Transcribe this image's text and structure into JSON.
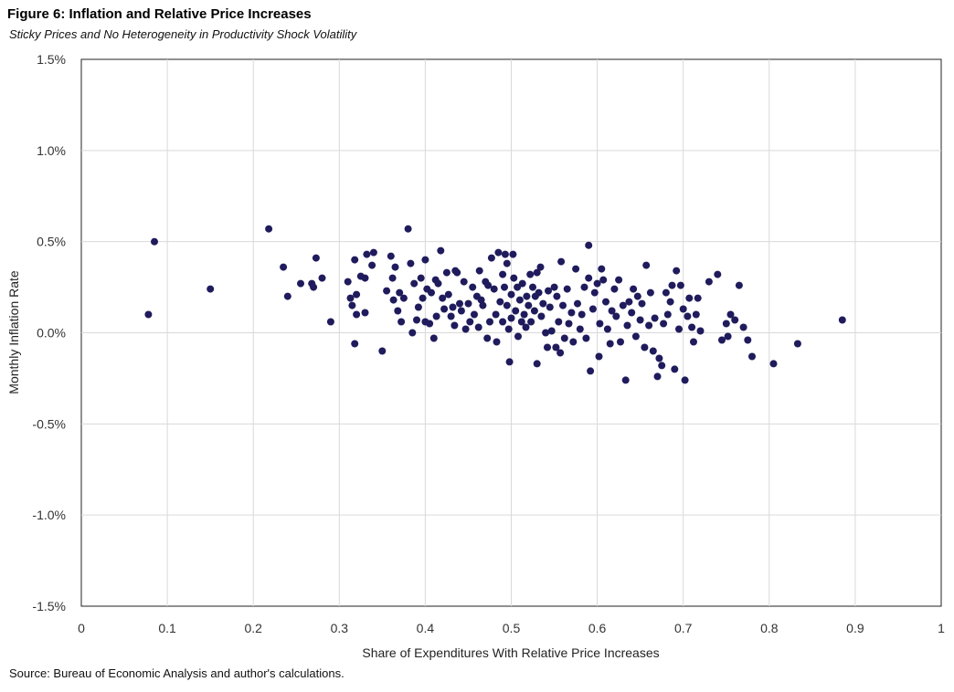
{
  "figure": {
    "title": "Figure 6: Inflation and Relative Price Increases",
    "subtitle": "Sticky Prices and No Heterogeneity in Productivity Shock Volatility",
    "source": "Source: Bureau of Economic Analysis and author's calculations."
  },
  "chart_data": {
    "type": "scatter",
    "xlabel": "Share of Expenditures With Relative Price Increases",
    "ylabel": "Monthly Inflation Rate",
    "xlim": [
      0,
      1
    ],
    "ylim": [
      -1.5,
      1.5
    ],
    "x_ticks": [
      0,
      0.1,
      0.2,
      0.3,
      0.4,
      0.5,
      0.6,
      0.7,
      0.8,
      0.9,
      1
    ],
    "x_tick_labels": [
      "0",
      "0.1",
      "0.2",
      "0.3",
      "0.4",
      "0.5",
      "0.6",
      "0.7",
      "0.8",
      "0.9",
      "1"
    ],
    "y_ticks": [
      -1.5,
      -1.0,
      -0.5,
      0.0,
      0.5,
      1.0,
      1.5
    ],
    "y_tick_labels": [
      "-1.5%",
      "-1.0%",
      "-0.5%",
      "0.0%",
      "0.5%",
      "1.0%",
      "1.5%"
    ],
    "grid": true,
    "marker_color": "#1f1b5c",
    "series": [
      {
        "points": [
          [
            0.078,
            0.1
          ],
          [
            0.085,
            0.5
          ],
          [
            0.15,
            0.24
          ],
          [
            0.218,
            0.57
          ],
          [
            0.235,
            0.36
          ],
          [
            0.24,
            0.2
          ],
          [
            0.255,
            0.27
          ],
          [
            0.268,
            0.27
          ],
          [
            0.27,
            0.25
          ],
          [
            0.273,
            0.41
          ],
          [
            0.28,
            0.3
          ],
          [
            0.29,
            0.06
          ],
          [
            0.31,
            0.28
          ],
          [
            0.313,
            0.19
          ],
          [
            0.315,
            0.15
          ],
          [
            0.318,
            0.4
          ],
          [
            0.318,
            -0.06
          ],
          [
            0.32,
            0.1
          ],
          [
            0.32,
            0.21
          ],
          [
            0.325,
            0.31
          ],
          [
            0.33,
            0.3
          ],
          [
            0.33,
            0.11
          ],
          [
            0.332,
            0.43
          ],
          [
            0.338,
            0.37
          ],
          [
            0.34,
            0.44
          ],
          [
            0.35,
            -0.1
          ],
          [
            0.355,
            0.23
          ],
          [
            0.36,
            0.42
          ],
          [
            0.362,
            0.3
          ],
          [
            0.363,
            0.18
          ],
          [
            0.365,
            0.36
          ],
          [
            0.368,
            0.12
          ],
          [
            0.37,
            0.22
          ],
          [
            0.372,
            0.06
          ],
          [
            0.375,
            0.19
          ],
          [
            0.38,
            0.57
          ],
          [
            0.383,
            0.38
          ],
          [
            0.385,
            0.0
          ],
          [
            0.387,
            0.27
          ],
          [
            0.39,
            0.07
          ],
          [
            0.392,
            0.14
          ],
          [
            0.395,
            0.3
          ],
          [
            0.397,
            0.19
          ],
          [
            0.4,
            0.06
          ],
          [
            0.4,
            0.4
          ],
          [
            0.402,
            0.24
          ],
          [
            0.405,
            0.05
          ],
          [
            0.407,
            0.22
          ],
          [
            0.41,
            -0.03
          ],
          [
            0.412,
            0.29
          ],
          [
            0.413,
            0.09
          ],
          [
            0.415,
            0.27
          ],
          [
            0.418,
            0.45
          ],
          [
            0.42,
            0.19
          ],
          [
            0.422,
            0.13
          ],
          [
            0.425,
            0.33
          ],
          [
            0.427,
            0.21
          ],
          [
            0.43,
            0.09
          ],
          [
            0.432,
            0.14
          ],
          [
            0.434,
            0.04
          ],
          [
            0.435,
            0.34
          ],
          [
            0.437,
            0.33
          ],
          [
            0.44,
            0.16
          ],
          [
            0.442,
            0.12
          ],
          [
            0.445,
            0.28
          ],
          [
            0.447,
            0.02
          ],
          [
            0.45,
            0.16
          ],
          [
            0.452,
            0.06
          ],
          [
            0.455,
            0.25
          ],
          [
            0.457,
            0.1
          ],
          [
            0.46,
            0.2
          ],
          [
            0.462,
            0.03
          ],
          [
            0.463,
            0.34
          ],
          [
            0.465,
            0.18
          ],
          [
            0.467,
            0.15
          ],
          [
            0.47,
            0.28
          ],
          [
            0.472,
            -0.03
          ],
          [
            0.473,
            0.26
          ],
          [
            0.475,
            0.06
          ],
          [
            0.477,
            0.41
          ],
          [
            0.48,
            0.24
          ],
          [
            0.482,
            0.1
          ],
          [
            0.483,
            -0.05
          ],
          [
            0.485,
            0.44
          ],
          [
            0.487,
            0.17
          ],
          [
            0.49,
            0.32
          ],
          [
            0.49,
            0.06
          ],
          [
            0.492,
            0.25
          ],
          [
            0.493,
            0.43
          ],
          [
            0.495,
            0.38
          ],
          [
            0.495,
            0.15
          ],
          [
            0.497,
            0.02
          ],
          [
            0.498,
            -0.16
          ],
          [
            0.5,
            0.21
          ],
          [
            0.5,
            0.08
          ],
          [
            0.502,
            0.43
          ],
          [
            0.503,
            0.3
          ],
          [
            0.505,
            0.12
          ],
          [
            0.507,
            0.25
          ],
          [
            0.508,
            -0.02
          ],
          [
            0.51,
            0.18
          ],
          [
            0.512,
            0.06
          ],
          [
            0.513,
            0.27
          ],
          [
            0.515,
            0.1
          ],
          [
            0.517,
            0.03
          ],
          [
            0.518,
            0.2
          ],
          [
            0.52,
            0.15
          ],
          [
            0.522,
            0.32
          ],
          [
            0.523,
            0.06
          ],
          [
            0.525,
            0.25
          ],
          [
            0.527,
            0.12
          ],
          [
            0.528,
            0.2
          ],
          [
            0.53,
            0.33
          ],
          [
            0.53,
            -0.17
          ],
          [
            0.532,
            0.22
          ],
          [
            0.534,
            0.36
          ],
          [
            0.535,
            0.09
          ],
          [
            0.537,
            0.16
          ],
          [
            0.54,
            0.0
          ],
          [
            0.542,
            -0.08
          ],
          [
            0.543,
            0.23
          ],
          [
            0.545,
            0.14
          ],
          [
            0.547,
            0.01
          ],
          [
            0.55,
            0.25
          ],
          [
            0.552,
            -0.08
          ],
          [
            0.553,
            0.2
          ],
          [
            0.555,
            0.06
          ],
          [
            0.557,
            -0.11
          ],
          [
            0.558,
            0.39
          ],
          [
            0.56,
            0.15
          ],
          [
            0.562,
            -0.03
          ],
          [
            0.565,
            0.24
          ],
          [
            0.567,
            0.05
          ],
          [
            0.57,
            0.11
          ],
          [
            0.572,
            -0.05
          ],
          [
            0.575,
            0.35
          ],
          [
            0.577,
            0.16
          ],
          [
            0.58,
            0.02
          ],
          [
            0.582,
            0.1
          ],
          [
            0.585,
            0.25
          ],
          [
            0.587,
            -0.03
          ],
          [
            0.59,
            0.3
          ],
          [
            0.59,
            0.48
          ],
          [
            0.592,
            -0.21
          ],
          [
            0.595,
            0.13
          ],
          [
            0.597,
            0.22
          ],
          [
            0.6,
            0.27
          ],
          [
            0.602,
            -0.13
          ],
          [
            0.603,
            0.05
          ],
          [
            0.605,
            0.35
          ],
          [
            0.607,
            0.29
          ],
          [
            0.61,
            0.17
          ],
          [
            0.612,
            0.02
          ],
          [
            0.615,
            -0.06
          ],
          [
            0.617,
            0.12
          ],
          [
            0.62,
            0.24
          ],
          [
            0.622,
            0.09
          ],
          [
            0.625,
            0.29
          ],
          [
            0.627,
            -0.05
          ],
          [
            0.63,
            0.15
          ],
          [
            0.633,
            -0.26
          ],
          [
            0.635,
            0.04
          ],
          [
            0.637,
            0.17
          ],
          [
            0.64,
            0.11
          ],
          [
            0.642,
            0.24
          ],
          [
            0.645,
            -0.02
          ],
          [
            0.647,
            0.2
          ],
          [
            0.65,
            0.07
          ],
          [
            0.652,
            0.16
          ],
          [
            0.655,
            -0.08
          ],
          [
            0.657,
            0.37
          ],
          [
            0.66,
            0.04
          ],
          [
            0.662,
            0.22
          ],
          [
            0.665,
            -0.1
          ],
          [
            0.667,
            0.08
          ],
          [
            0.67,
            -0.24
          ],
          [
            0.672,
            -0.14
          ],
          [
            0.675,
            -0.18
          ],
          [
            0.677,
            0.05
          ],
          [
            0.68,
            0.22
          ],
          [
            0.682,
            0.1
          ],
          [
            0.685,
            0.17
          ],
          [
            0.687,
            0.26
          ],
          [
            0.69,
            -0.2
          ],
          [
            0.692,
            0.34
          ],
          [
            0.695,
            0.02
          ],
          [
            0.697,
            0.26
          ],
          [
            0.7,
            0.13
          ],
          [
            0.702,
            -0.26
          ],
          [
            0.705,
            0.09
          ],
          [
            0.707,
            0.19
          ],
          [
            0.71,
            0.03
          ],
          [
            0.712,
            -0.05
          ],
          [
            0.715,
            0.1
          ],
          [
            0.717,
            0.19
          ],
          [
            0.72,
            0.01
          ],
          [
            0.73,
            0.28
          ],
          [
            0.74,
            0.32
          ],
          [
            0.745,
            -0.04
          ],
          [
            0.75,
            0.05
          ],
          [
            0.752,
            -0.02
          ],
          [
            0.755,
            0.1
          ],
          [
            0.76,
            0.07
          ],
          [
            0.765,
            0.26
          ],
          [
            0.77,
            0.03
          ],
          [
            0.775,
            -0.04
          ],
          [
            0.78,
            -0.13
          ],
          [
            0.805,
            -0.17
          ],
          [
            0.833,
            -0.06
          ],
          [
            0.885,
            0.07
          ]
        ]
      }
    ]
  }
}
